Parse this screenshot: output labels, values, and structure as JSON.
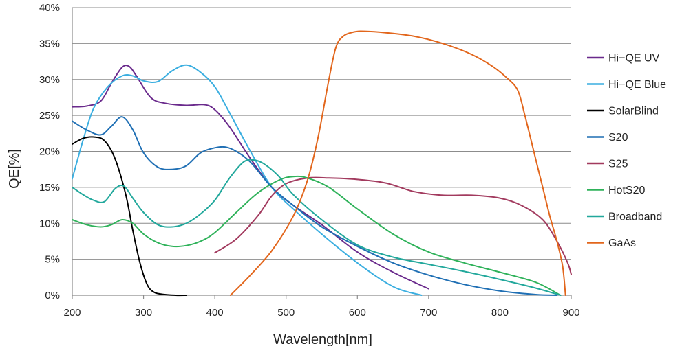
{
  "chart_data": {
    "type": "line",
    "title": "",
    "xlabel": "Wavelength[nm]",
    "ylabel": "QE[%]",
    "xlim": [
      200,
      900
    ],
    "ylim": [
      0,
      40
    ],
    "x_ticks": [
      "200",
      "300",
      "400",
      "500",
      "600",
      "700",
      "800",
      "900"
    ],
    "y_ticks": [
      "0%",
      "5%",
      "10%",
      "15%",
      "20%",
      "25%",
      "30%",
      "35%",
      "40%"
    ],
    "grid": true,
    "legend_position": "right",
    "series": [
      {
        "name": "Hi−QE UV",
        "color": "#6a2a8c",
        "x": [
          200,
          220,
          240,
          255,
          270,
          280,
          290,
          310,
          330,
          360,
          385,
          400,
          420,
          450,
          480,
          510,
          550,
          600,
          650,
          700
        ],
        "y": [
          26.2,
          26.3,
          27.0,
          29.5,
          31.7,
          31.8,
          30.5,
          27.5,
          26.7,
          26.4,
          26.5,
          25.8,
          23.5,
          19.0,
          15.0,
          12.5,
          9.8,
          6.0,
          3.2,
          0.9
        ]
      },
      {
        "name": "Hi−QE Blue",
        "color": "#3aaee0",
        "x": [
          200,
          215,
          230,
          250,
          270,
          285,
          300,
          320,
          340,
          360,
          380,
          400,
          420,
          450,
          480,
          510,
          550,
          600,
          650,
          690
        ],
        "y": [
          16.2,
          21.5,
          26.0,
          29.0,
          30.5,
          30.5,
          29.8,
          29.7,
          31.2,
          32.0,
          31.0,
          29.0,
          25.5,
          20.0,
          15.0,
          12.0,
          8.5,
          4.5,
          1.2,
          0.0
        ]
      },
      {
        "name": "SolarBlind",
        "color": "#000000",
        "x": [
          200,
          215,
          230,
          245,
          260,
          275,
          285,
          295,
          305,
          315,
          330,
          345,
          360
        ],
        "y": [
          21.0,
          21.8,
          22.0,
          21.5,
          19.0,
          14.0,
          9.0,
          4.5,
          1.5,
          0.4,
          0.1,
          0.0,
          0.0
        ]
      },
      {
        "name": "S20",
        "color": "#1f6fb4",
        "x": [
          200,
          220,
          240,
          255,
          270,
          285,
          300,
          320,
          340,
          360,
          380,
          400,
          415,
          430,
          450,
          480,
          510,
          550,
          600,
          650,
          700,
          750,
          800,
          850,
          880
        ],
        "y": [
          24.2,
          23.0,
          22.3,
          23.5,
          24.8,
          23.0,
          19.8,
          17.8,
          17.5,
          18.0,
          19.8,
          20.5,
          20.6,
          20.0,
          18.5,
          15.0,
          12.5,
          9.5,
          6.8,
          4.5,
          2.8,
          1.5,
          0.6,
          0.1,
          0.0
        ]
      },
      {
        "name": "S25",
        "color": "#a23a5e",
        "x": [
          400,
          430,
          460,
          480,
          500,
          530,
          560,
          600,
          640,
          680,
          720,
          760,
          800,
          830,
          860,
          880,
          895,
          900
        ],
        "y": [
          5.9,
          7.8,
          11.0,
          13.8,
          15.5,
          16.3,
          16.3,
          16.1,
          15.6,
          14.4,
          13.9,
          13.9,
          13.5,
          12.5,
          10.5,
          7.5,
          4.5,
          2.9
        ]
      },
      {
        "name": "HotS20",
        "color": "#2fb25a",
        "x": [
          200,
          220,
          240,
          255,
          270,
          285,
          300,
          320,
          340,
          360,
          380,
          400,
          430,
          460,
          490,
          510,
          530,
          560,
          600,
          650,
          700,
          750,
          800,
          850,
          885
        ],
        "y": [
          10.5,
          9.8,
          9.5,
          9.8,
          10.5,
          10.0,
          8.5,
          7.3,
          6.8,
          6.9,
          7.5,
          8.7,
          11.5,
          14.2,
          16.0,
          16.5,
          16.3,
          15.0,
          12.0,
          8.5,
          6.0,
          4.5,
          3.2,
          1.8,
          0.0
        ]
      },
      {
        "name": "Broadband",
        "color": "#22a89c",
        "x": [
          200,
          215,
          230,
          245,
          260,
          272,
          285,
          300,
          320,
          340,
          360,
          380,
          400,
          420,
          440,
          455,
          470,
          490,
          510,
          550,
          600,
          650,
          700,
          750,
          800,
          850,
          885
        ],
        "y": [
          15.0,
          14.0,
          13.2,
          13.0,
          14.8,
          15.2,
          13.5,
          11.5,
          9.8,
          9.5,
          10.0,
          11.3,
          13.2,
          16.2,
          18.5,
          18.8,
          18.2,
          16.5,
          14.0,
          10.5,
          7.0,
          5.3,
          4.3,
          3.3,
          2.2,
          1.0,
          0.0
        ]
      },
      {
        "name": "GaAs",
        "color": "#e2661c",
        "x": [
          422,
          450,
          480,
          510,
          530,
          545,
          560,
          570,
          580,
          595,
          610,
          640,
          680,
          720,
          760,
          790,
          810,
          825,
          835,
          850,
          860,
          870,
          880,
          888,
          892
        ],
        "y": [
          0.0,
          2.8,
          6.2,
          11.0,
          16.0,
          22.0,
          30.0,
          34.5,
          36.0,
          36.6,
          36.7,
          36.5,
          36.0,
          35.0,
          33.5,
          31.8,
          30.2,
          28.5,
          25.0,
          19.0,
          15.0,
          11.0,
          7.5,
          4.0,
          0.0
        ]
      }
    ]
  }
}
